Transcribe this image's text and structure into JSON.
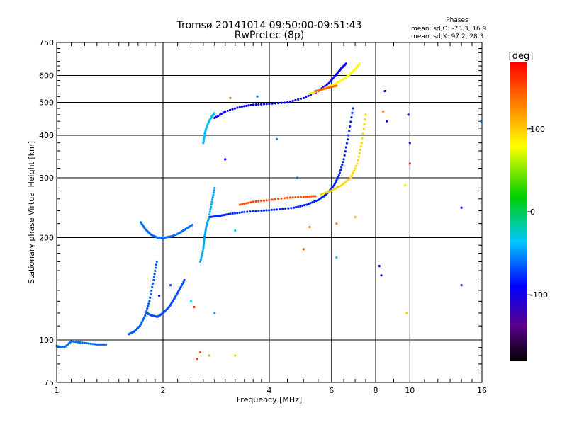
{
  "chart_data": {
    "type": "scatter",
    "title": "Tromsø 20141014 09:50:00-09:51:43",
    "subtitle": "RwPretec (8p)",
    "xlabel": "Frequency [MHz]",
    "ylabel": "Stationary phase Virtual Height [km]",
    "x_scale": "log",
    "y_scale": "log",
    "xlim": [
      1,
      16
    ],
    "ylim": [
      75,
      750
    ],
    "x_ticks": [
      1,
      2,
      4,
      6,
      8,
      10,
      16
    ],
    "y_ticks": [
      75,
      100,
      200,
      300,
      400,
      500,
      600,
      750
    ],
    "grid": true,
    "stats": {
      "heading": "Phases",
      "o_line": "mean, sd,O: -73.3, 16.9",
      "x_line": "mean, sd,X:  97.2, 28.3"
    },
    "colorbar": {
      "label": "[deg]",
      "range": [
        -180,
        180
      ],
      "ticks": [
        100,
        0,
        -100
      ],
      "tick_labels": [
        "100",
        "0",
        "-100"
      ]
    },
    "traces": [
      {
        "x": [
          1.0,
          1.05,
          1.1,
          1.2,
          1.3,
          1.38
        ],
        "y": [
          96,
          95,
          99,
          98,
          97,
          97
        ],
        "phase": -60
      },
      {
        "x": [
          1.6,
          1.66,
          1.72,
          1.78,
          1.83,
          1.88,
          1.92
        ],
        "y": [
          104,
          106,
          110,
          118,
          130,
          150,
          170
        ],
        "phase": -65
      },
      {
        "x": [
          1.8,
          1.86,
          1.93,
          2.0,
          2.08,
          2.15,
          2.22,
          2.3
        ],
        "y": [
          120,
          118,
          117,
          120,
          125,
          132,
          140,
          150
        ],
        "phase": -70
      },
      {
        "x": [
          1.73,
          1.78,
          1.85,
          1.93,
          2.02,
          2.12,
          2.22,
          2.32,
          2.42
        ],
        "y": [
          222,
          212,
          204,
          200,
          200,
          202,
          206,
          212,
          218
        ],
        "phase": -60
      },
      {
        "x": [
          2.55,
          2.6,
          2.62,
          2.65,
          2.7,
          2.75,
          2.8
        ],
        "y": [
          170,
          185,
          200,
          215,
          230,
          255,
          280
        ],
        "phase": -45
      },
      {
        "x": [
          2.72,
          2.9,
          3.1,
          3.4,
          3.8,
          4.2,
          4.7,
          5.1,
          5.5,
          5.8,
          6.1,
          6.3,
          6.5,
          6.7,
          6.9
        ],
        "y": [
          230,
          232,
          235,
          238,
          240,
          242,
          245,
          250,
          258,
          268,
          285,
          305,
          340,
          400,
          480
        ],
        "phase": -80
      },
      {
        "x": [
          3.3,
          3.6,
          4.0,
          4.5,
          5.0,
          5.4
        ],
        "y": [
          250,
          255,
          258,
          262,
          264,
          265
        ],
        "phase": 150
      },
      {
        "x": [
          5.6,
          6.0,
          6.4,
          6.8,
          7.1,
          7.3,
          7.5
        ],
        "y": [
          268,
          275,
          285,
          300,
          330,
          380,
          460
        ],
        "phase": 95
      },
      {
        "x": [
          2.6,
          2.62,
          2.65,
          2.7,
          2.75,
          2.8
        ],
        "y": [
          380,
          400,
          420,
          440,
          455,
          465
        ],
        "phase": -40
      },
      {
        "x": [
          2.8,
          3.0,
          3.3,
          3.6,
          4.0,
          4.5,
          5.0,
          5.5,
          5.9,
          6.2,
          6.4,
          6.6
        ],
        "y": [
          450,
          470,
          485,
          492,
          495,
          500,
          515,
          540,
          570,
          605,
          630,
          650
        ],
        "phase": -95
      },
      {
        "x": [
          5.2,
          5.6,
          6.0,
          6.4,
          6.7,
          7.0,
          7.2
        ],
        "y": [
          530,
          545,
          560,
          580,
          600,
          625,
          650
        ],
        "phase": 80
      },
      {
        "x": [
          5.4,
          5.8,
          6.2
        ],
        "y": [
          540,
          550,
          560
        ],
        "phase": 140
      }
    ],
    "scatter": [
      {
        "x": 1.95,
        "y": 135,
        "phase": -90
      },
      {
        "x": 2.1,
        "y": 145,
        "phase": -80
      },
      {
        "x": 2.4,
        "y": 130,
        "phase": -30
      },
      {
        "x": 2.45,
        "y": 125,
        "phase": 170
      },
      {
        "x": 2.5,
        "y": 88,
        "phase": 150
      },
      {
        "x": 2.55,
        "y": 92,
        "phase": 150
      },
      {
        "x": 2.7,
        "y": 90,
        "phase": 50
      },
      {
        "x": 3.2,
        "y": 90,
        "phase": 100
      },
      {
        "x": 2.8,
        "y": 120,
        "phase": -50
      },
      {
        "x": 3.7,
        "y": 520,
        "phase": -60
      },
      {
        "x": 3.1,
        "y": 515,
        "phase": 150
      },
      {
        "x": 4.2,
        "y": 390,
        "phase": -50
      },
      {
        "x": 5.0,
        "y": 185,
        "phase": 150
      },
      {
        "x": 5.2,
        "y": 215,
        "phase": 130
      },
      {
        "x": 6.2,
        "y": 175,
        "phase": -40
      },
      {
        "x": 6.2,
        "y": 220,
        "phase": 130
      },
      {
        "x": 8.2,
        "y": 165,
        "phase": -110
      },
      {
        "x": 8.3,
        "y": 155,
        "phase": -110
      },
      {
        "x": 8.5,
        "y": 540,
        "phase": -100
      },
      {
        "x": 8.4,
        "y": 470,
        "phase": 130
      },
      {
        "x": 8.6,
        "y": 440,
        "phase": -100
      },
      {
        "x": 9.7,
        "y": 285,
        "phase": 90
      },
      {
        "x": 9.8,
        "y": 120,
        "phase": 100
      },
      {
        "x": 9.9,
        "y": 460,
        "phase": -110
      },
      {
        "x": 10.0,
        "y": 380,
        "phase": -110
      },
      {
        "x": 10.0,
        "y": 330,
        "phase": 180
      },
      {
        "x": 14.0,
        "y": 245,
        "phase": -90
      },
      {
        "x": 14.0,
        "y": 145,
        "phase": -80
      },
      {
        "x": 15.9,
        "y": 440,
        "phase": -40
      },
      {
        "x": 3.2,
        "y": 210,
        "phase": -40
      },
      {
        "x": 4.8,
        "y": 300,
        "phase": -60
      },
      {
        "x": 7.0,
        "y": 230,
        "phase": 110
      },
      {
        "x": 3.0,
        "y": 340,
        "phase": -90
      }
    ]
  }
}
